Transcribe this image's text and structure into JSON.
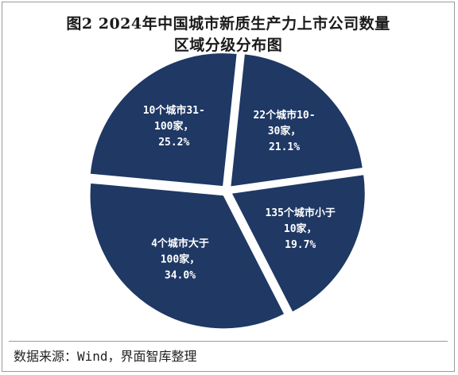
{
  "title_line1": "图2  2024年中国城市新质生产力上市公司数量",
  "title_line2": "区域分级分布图",
  "source": "数据来源：Wind，界面智库整理",
  "colors": {
    "slice": "#1f3864",
    "label": "#ffffff",
    "border": "#9a9a9a"
  },
  "chart_data": {
    "type": "pie",
    "title": "图2  2024年中国城市新质生产力上市公司数量区域分级分布图",
    "slices": [
      {
        "label_lines": [
          "22个城市10-",
          "30家，",
          "21.1%"
        ],
        "value": 21.1
      },
      {
        "label_lines": [
          "135个城市小于",
          "10家，",
          "19.7%"
        ],
        "value": 19.7
      },
      {
        "label_lines": [
          "4个城市大于",
          "100家，",
          "34.0%"
        ],
        "value": 34.0
      },
      {
        "label_lines": [
          "10个城市31-",
          "100家，",
          "25.2%"
        ],
        "value": 25.2
      }
    ]
  }
}
